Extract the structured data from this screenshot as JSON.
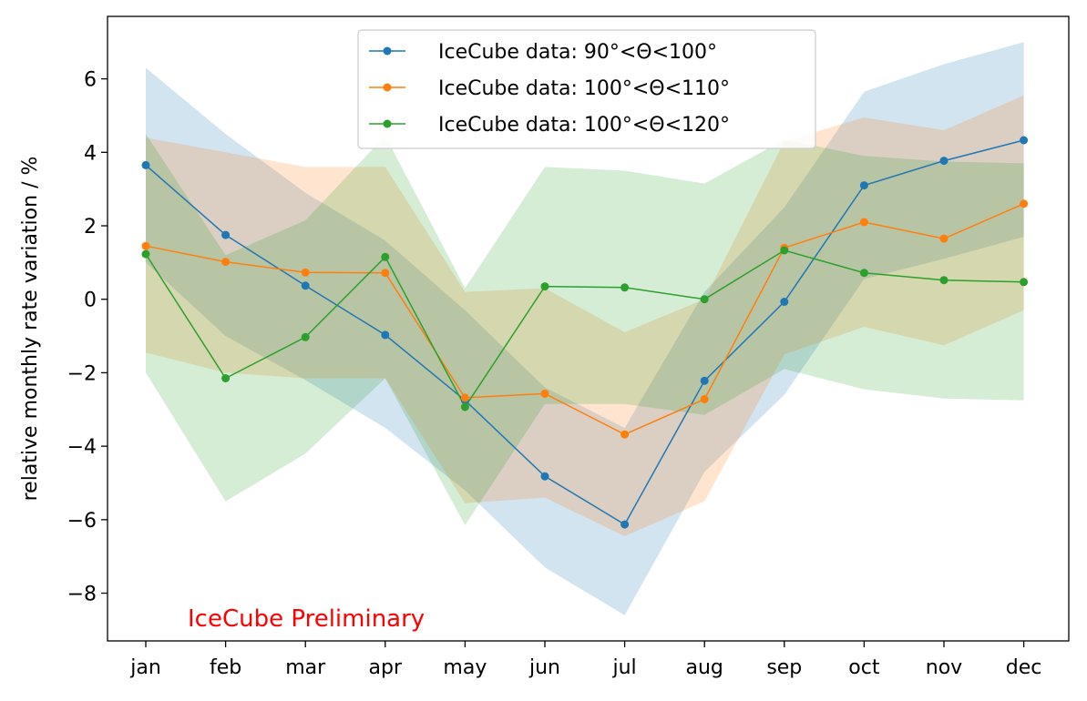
{
  "chart_data": {
    "type": "line",
    "title": "",
    "xlabel": "",
    "ylabel": "relative monthly rate variation / %",
    "categories": [
      "jan",
      "feb",
      "mar",
      "apr",
      "may",
      "jun",
      "jul",
      "aug",
      "sep",
      "oct",
      "nov",
      "dec"
    ],
    "ylim": [
      -9.3,
      7.7
    ],
    "yticks": [
      -8,
      -6,
      -4,
      -2,
      0,
      2,
      4,
      6
    ],
    "ytick_labels": [
      "−8",
      "−6",
      "−4",
      "−2",
      "0",
      "2",
      "4",
      "6"
    ],
    "grid": false,
    "legend_position": "top-center",
    "annotation": {
      "text": "IceCube Preliminary",
      "color": "#ff0000"
    },
    "series": [
      {
        "name": "IceCube data: 90°<Θ<100°",
        "color": "#1f77b4",
        "values": [
          3.65,
          1.75,
          0.37,
          -0.97,
          -2.75,
          -4.82,
          -6.13,
          -2.22,
          -0.07,
          3.1,
          3.77,
          4.33
        ],
        "band_upper": [
          6.3,
          4.5,
          2.9,
          1.6,
          -0.3,
          -2.4,
          -3.5,
          0.2,
          2.5,
          5.65,
          6.4,
          7.0
        ],
        "band_lower": [
          1.0,
          -1.0,
          -2.2,
          -3.5,
          -5.2,
          -7.3,
          -8.6,
          -4.7,
          -2.6,
          0.55,
          1.1,
          1.7
        ]
      },
      {
        "name": "IceCube data: 100°<Θ<110°",
        "color": "#ff7f0e",
        "values": [
          1.45,
          1.02,
          0.73,
          0.72,
          -2.68,
          -2.57,
          -3.68,
          -2.72,
          1.4,
          2.1,
          1.65,
          2.6
        ],
        "band_upper": [
          4.4,
          4.0,
          3.6,
          3.6,
          0.2,
          0.3,
          -0.9,
          0.0,
          4.3,
          4.95,
          4.6,
          5.55
        ],
        "band_lower": [
          -1.45,
          -2.0,
          -2.15,
          -2.15,
          -5.55,
          -5.4,
          -6.45,
          -5.5,
          -1.5,
          -0.75,
          -1.25,
          -0.3
        ]
      },
      {
        "name": "IceCube data: 100°<Θ<120°",
        "color": "#2ca02c",
        "values": [
          1.23,
          -2.15,
          -1.03,
          1.15,
          -2.93,
          0.35,
          0.32,
          0.0,
          1.33,
          0.72,
          0.52,
          0.47
        ],
        "band_upper": [
          4.5,
          1.2,
          2.15,
          4.45,
          0.3,
          3.6,
          3.5,
          3.15,
          4.35,
          3.9,
          3.75,
          3.7
        ],
        "band_lower": [
          -2.0,
          -5.5,
          -4.2,
          -2.15,
          -6.15,
          -2.85,
          -2.85,
          -3.15,
          -1.9,
          -2.45,
          -2.7,
          -2.75
        ]
      }
    ]
  }
}
